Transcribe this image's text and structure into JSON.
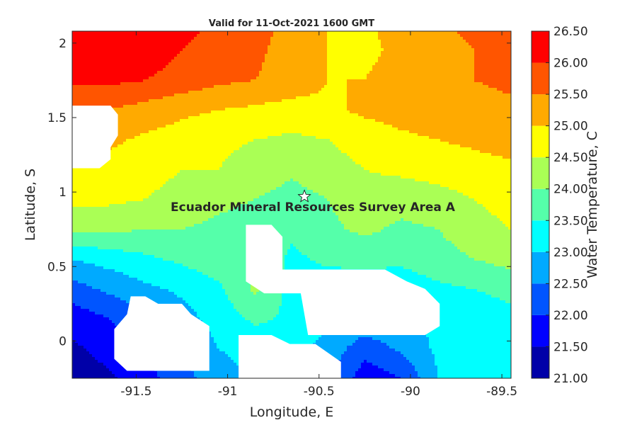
{
  "chart_data": {
    "type": "heatmap",
    "title": "Valid for 11-Oct-2021 1600 GMT",
    "xlabel": "Longitude, E",
    "ylabel": "Latitude, S",
    "colorbar_label": "Water Temperature, C",
    "annotation": "Ecuador Mineral Resources Survey Area A",
    "marker": {
      "symbol": "star",
      "lon": -90.58,
      "lat": 0.97
    },
    "xlim": [
      -91.85,
      -89.45
    ],
    "ylim": [
      -0.25,
      2.08
    ],
    "x_ticks": [
      -91.5,
      -91,
      -90.5,
      -90,
      -89.5
    ],
    "x_tick_labels": [
      "-91.5",
      "-91",
      "-90.5",
      "-90",
      "-89.5"
    ],
    "y_ticks": [
      0,
      0.5,
      1,
      1.5,
      2
    ],
    "y_tick_labels": [
      "0",
      "0.5",
      "1",
      "1.5",
      "2"
    ],
    "levels": [
      21.0,
      21.5,
      22.0,
      22.5,
      23.0,
      23.5,
      24.0,
      24.5,
      25.0,
      25.5,
      26.0,
      26.5
    ],
    "level_labels": [
      "21.00",
      "21.50",
      "22.00",
      "22.50",
      "23.00",
      "23.50",
      "24.00",
      "24.50",
      "25.00",
      "25.50",
      "26.00",
      "26.50"
    ],
    "colors": [
      "#0000a8",
      "#0000ff",
      "#0055ff",
      "#00aaff",
      "#00ffff",
      "#55ffaa",
      "#aaff55",
      "#ffff00",
      "#ffaa00",
      "#ff5500",
      "#ff0000"
    ],
    "grid": false,
    "masked_regions": "land (islands) shown in white",
    "field": {
      "lons": [
        -91.85,
        -91.65,
        -91.45,
        -91.25,
        -91.05,
        -90.85,
        -90.65,
        -90.45,
        -90.25,
        -90.05,
        -89.85,
        -89.65,
        -89.45
      ],
      "lats": [
        -0.25,
        -0.05,
        0.15,
        0.35,
        0.55,
        0.75,
        0.95,
        1.15,
        1.35,
        1.55,
        1.75,
        1.95,
        2.08
      ],
      "values_by_lat": [
        [
          21.2,
          21.4,
          21.8,
          22.3,
          22.8,
          23.0,
          23.0,
          22.6,
          21.7,
          22.0,
          23.0,
          23.1,
          23.2
        ],
        [
          21.4,
          21.7,
          22.1,
          22.5,
          23.0,
          23.2,
          23.2,
          22.8,
          22.2,
          22.6,
          23.1,
          23.2,
          23.3
        ],
        [
          21.7,
          22.0,
          22.4,
          22.8,
          23.2,
          23.6,
          23.4,
          23.1,
          22.9,
          23.0,
          23.1,
          23.3,
          23.4
        ],
        [
          22.3,
          22.6,
          22.9,
          23.1,
          23.4,
          24.1,
          23.3,
          23.2,
          23.1,
          23.2,
          23.4,
          23.5,
          23.6
        ],
        [
          23.0,
          23.2,
          23.4,
          23.6,
          23.8,
          23.9,
          23.4,
          23.6,
          23.7,
          23.6,
          23.8,
          24.0,
          24.2
        ],
        [
          24.1,
          24.1,
          24.0,
          24.0,
          23.9,
          23.8,
          23.6,
          23.9,
          24.1,
          23.9,
          24.0,
          24.3,
          24.5
        ],
        [
          24.6,
          24.6,
          24.5,
          24.3,
          24.1,
          24.0,
          23.8,
          24.0,
          24.3,
          24.2,
          24.3,
          24.5,
          24.7
        ],
        [
          24.9,
          24.8,
          24.7,
          24.5,
          24.5,
          24.3,
          24.1,
          24.3,
          24.5,
          24.6,
          24.7,
          24.8,
          24.9
        ],
        [
          25.2,
          25.1,
          24.9,
          24.8,
          24.6,
          24.5,
          24.4,
          24.5,
          24.7,
          24.9,
          25.0,
          25.1,
          25.2
        ],
        [
          25.6,
          25.5,
          25.3,
          25.1,
          25.0,
          24.9,
          24.8,
          24.9,
          25.1,
          25.2,
          25.3,
          25.3,
          25.4
        ],
        [
          26.1,
          26.1,
          26.0,
          25.8,
          25.6,
          25.5,
          25.3,
          25.0,
          25.0,
          25.2,
          25.4,
          25.5,
          25.6
        ],
        [
          26.4,
          26.5,
          26.3,
          26.0,
          25.8,
          25.6,
          25.3,
          25.0,
          24.9,
          25.1,
          25.3,
          25.5,
          25.6
        ],
        [
          26.5,
          26.6,
          26.4,
          26.1,
          25.9,
          25.7,
          25.3,
          25.0,
          24.9,
          25.2,
          25.4,
          25.6,
          25.7
        ]
      ]
    }
  }
}
